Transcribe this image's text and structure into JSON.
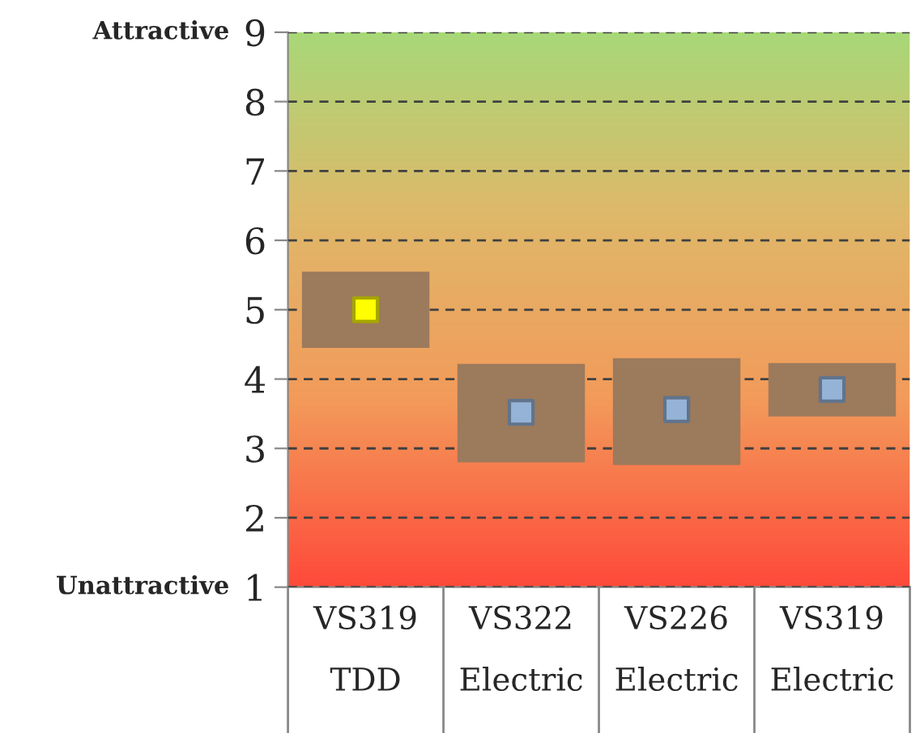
{
  "chart_data": {
    "type": "bar",
    "categories": [
      "VS319\nTDD",
      "VS322\nElectric",
      "VS226\nElectric",
      "VS319\nElectric"
    ],
    "series": [
      {
        "color": "#9c7a5c",
        "base": [
          4.45,
          2.8,
          2.76,
          3.46
        ],
        "values": [
          1.1,
          1.42,
          1.54,
          0.77
        ]
      },
      {
        "type": "scatter",
        "x": [
          "VS319\nTDD",
          "VS322\nElectric",
          "VS226\nElectric",
          "VS319\nElectric"
        ],
        "values": [
          5.0,
          3.52,
          3.56,
          3.85
        ],
        "colors": [
          "#ffff00",
          "#95b3d7",
          "#95b3d7",
          "#95b3d7"
        ],
        "marker": "square"
      }
    ],
    "ylim": [
      1,
      9
    ],
    "yticks": [
      1,
      2,
      3,
      4,
      5,
      6,
      7,
      8,
      9
    ],
    "grid": "y",
    "line_style": "dashed",
    "annotations": [
      "Attractive",
      "Unattractive"
    ]
  }
}
